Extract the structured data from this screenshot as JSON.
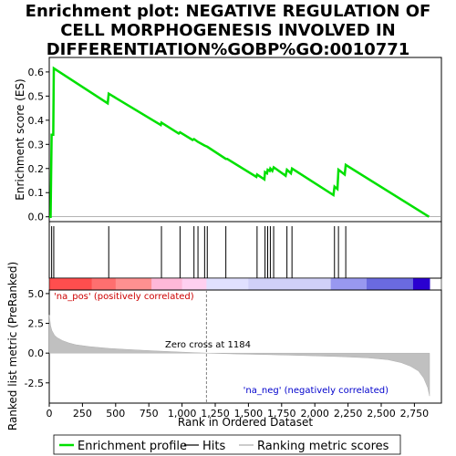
{
  "title_lines": [
    "Enrichment plot: NEGATIVE REGULATION OF",
    "CELL MORPHOGENESIS INVOLVED IN",
    "DIFFERENTIATION%GOBP%GO:0010771"
  ],
  "colors": {
    "es_line": "#00e000",
    "hits": "#000000",
    "metric_fill": "#c0c0c0",
    "pos_label": "#cc0000",
    "neg_label": "#0000cc",
    "zero_cross": "#808080"
  },
  "chart_data": {
    "type": "line",
    "x_max": 2864,
    "es_panel": {
      "ylabel": "Enrichment score (ES)",
      "ylim": [
        -0.02,
        0.66
      ],
      "yticks": [
        0.0,
        0.1,
        0.2,
        0.3,
        0.4,
        0.5,
        0.6
      ],
      "ytick_labels": [
        "0.0",
        "0.1",
        "0.2",
        "0.3",
        "0.4",
        "0.5",
        "0.6"
      ],
      "points": [
        [
          0,
          0.0
        ],
        [
          10,
          0.0
        ],
        [
          18,
          0.34
        ],
        [
          30,
          0.34
        ],
        [
          34,
          0.615
        ],
        [
          440,
          0.47
        ],
        [
          448,
          0.51
        ],
        [
          840,
          0.38
        ],
        [
          845,
          0.39
        ],
        [
          975,
          0.345
        ],
        [
          985,
          0.35
        ],
        [
          1080,
          0.318
        ],
        [
          1090,
          0.322
        ],
        [
          1120,
          0.31
        ],
        [
          1170,
          0.295
        ],
        [
          1190,
          0.29
        ],
        [
          1330,
          0.24
        ],
        [
          1340,
          0.24
        ],
        [
          1560,
          0.165
        ],
        [
          1565,
          0.175
        ],
        [
          1620,
          0.155
        ],
        [
          1625,
          0.185
        ],
        [
          1640,
          0.18
        ],
        [
          1645,
          0.195
        ],
        [
          1660,
          0.19
        ],
        [
          1665,
          0.2
        ],
        [
          1680,
          0.19
        ],
        [
          1690,
          0.205
        ],
        [
          1780,
          0.17
        ],
        [
          1790,
          0.195
        ],
        [
          1820,
          0.18
        ],
        [
          1828,
          0.2
        ],
        [
          2140,
          0.09
        ],
        [
          2148,
          0.125
        ],
        [
          2170,
          0.115
        ],
        [
          2178,
          0.195
        ],
        [
          2225,
          0.175
        ],
        [
          2233,
          0.215
        ],
        [
          2860,
          0.0
        ]
      ]
    },
    "hits": [
      18,
      34,
      448,
      845,
      985,
      1090,
      1120,
      1170,
      1190,
      1330,
      1565,
      1625,
      1645,
      1665,
      1690,
      1790,
      1828,
      2148,
      2178,
      2233
    ],
    "metric_panel": {
      "ylabel": "Ranked list metric (PreRanked)",
      "ylim": [
        -4.2,
        5.3
      ],
      "yticks": [
        5.0,
        2.5,
        0.0,
        -2.5
      ],
      "ytick_labels": [
        "5.0",
        "2.5",
        "0.0",
        "-2.5"
      ],
      "profile": [
        [
          0,
          3.2
        ],
        [
          10,
          2.3
        ],
        [
          20,
          1.9
        ],
        [
          40,
          1.5
        ],
        [
          60,
          1.3
        ],
        [
          100,
          1.05
        ],
        [
          150,
          0.85
        ],
        [
          200,
          0.7
        ],
        [
          300,
          0.55
        ],
        [
          450,
          0.4
        ],
        [
          600,
          0.3
        ],
        [
          800,
          0.18
        ],
        [
          1000,
          0.08
        ],
        [
          1184,
          0.0
        ],
        [
          1400,
          -0.07
        ],
        [
          1600,
          -0.12
        ],
        [
          1800,
          -0.17
        ],
        [
          2000,
          -0.23
        ],
        [
          2200,
          -0.3
        ],
        [
          2400,
          -0.4
        ],
        [
          2550,
          -0.55
        ],
        [
          2650,
          -0.8
        ],
        [
          2720,
          -1.1
        ],
        [
          2780,
          -1.5
        ],
        [
          2820,
          -2.1
        ],
        [
          2850,
          -2.9
        ],
        [
          2864,
          -3.6
        ]
      ],
      "zero_cross": 1184,
      "zero_cross_label": "Zero cross at 1184",
      "pos_label": "'na_pos' (positively correlated)",
      "neg_label": "'na_neg' (negatively correlated)"
    },
    "xlabel": "Rank in Ordered Dataset",
    "xticks": [
      0,
      250,
      500,
      750,
      1000,
      1250,
      1500,
      1750,
      2000,
      2250,
      2500,
      2750
    ],
    "xtick_labels": [
      "0",
      "250",
      "500",
      "750",
      "1,000",
      "1,250",
      "1,500",
      "1,750",
      "2,000",
      "2,250",
      "2,500",
      "2,750"
    ],
    "colorbar": [
      {
        "from": 0,
        "to": 320,
        "color": "#ff4e4e"
      },
      {
        "from": 320,
        "to": 500,
        "color": "#ff6f6f"
      },
      {
        "from": 500,
        "to": 770,
        "color": "#ff9090"
      },
      {
        "from": 770,
        "to": 1000,
        "color": "#ffb8d8"
      },
      {
        "from": 1000,
        "to": 1184,
        "color": "#ffd0f0"
      },
      {
        "from": 1184,
        "to": 1500,
        "color": "#e0e0ff"
      },
      {
        "from": 1500,
        "to": 2120,
        "color": "#d0d0f8"
      },
      {
        "from": 2120,
        "to": 2390,
        "color": "#9898f0"
      },
      {
        "from": 2390,
        "to": 2740,
        "color": "#6a6ae0"
      },
      {
        "from": 2740,
        "to": 2864,
        "color": "#2a00d0"
      }
    ],
    "legend": [
      {
        "label": "Enrichment profile"
      },
      {
        "label": "Hits"
      },
      {
        "label": "Ranking metric scores"
      }
    ]
  }
}
